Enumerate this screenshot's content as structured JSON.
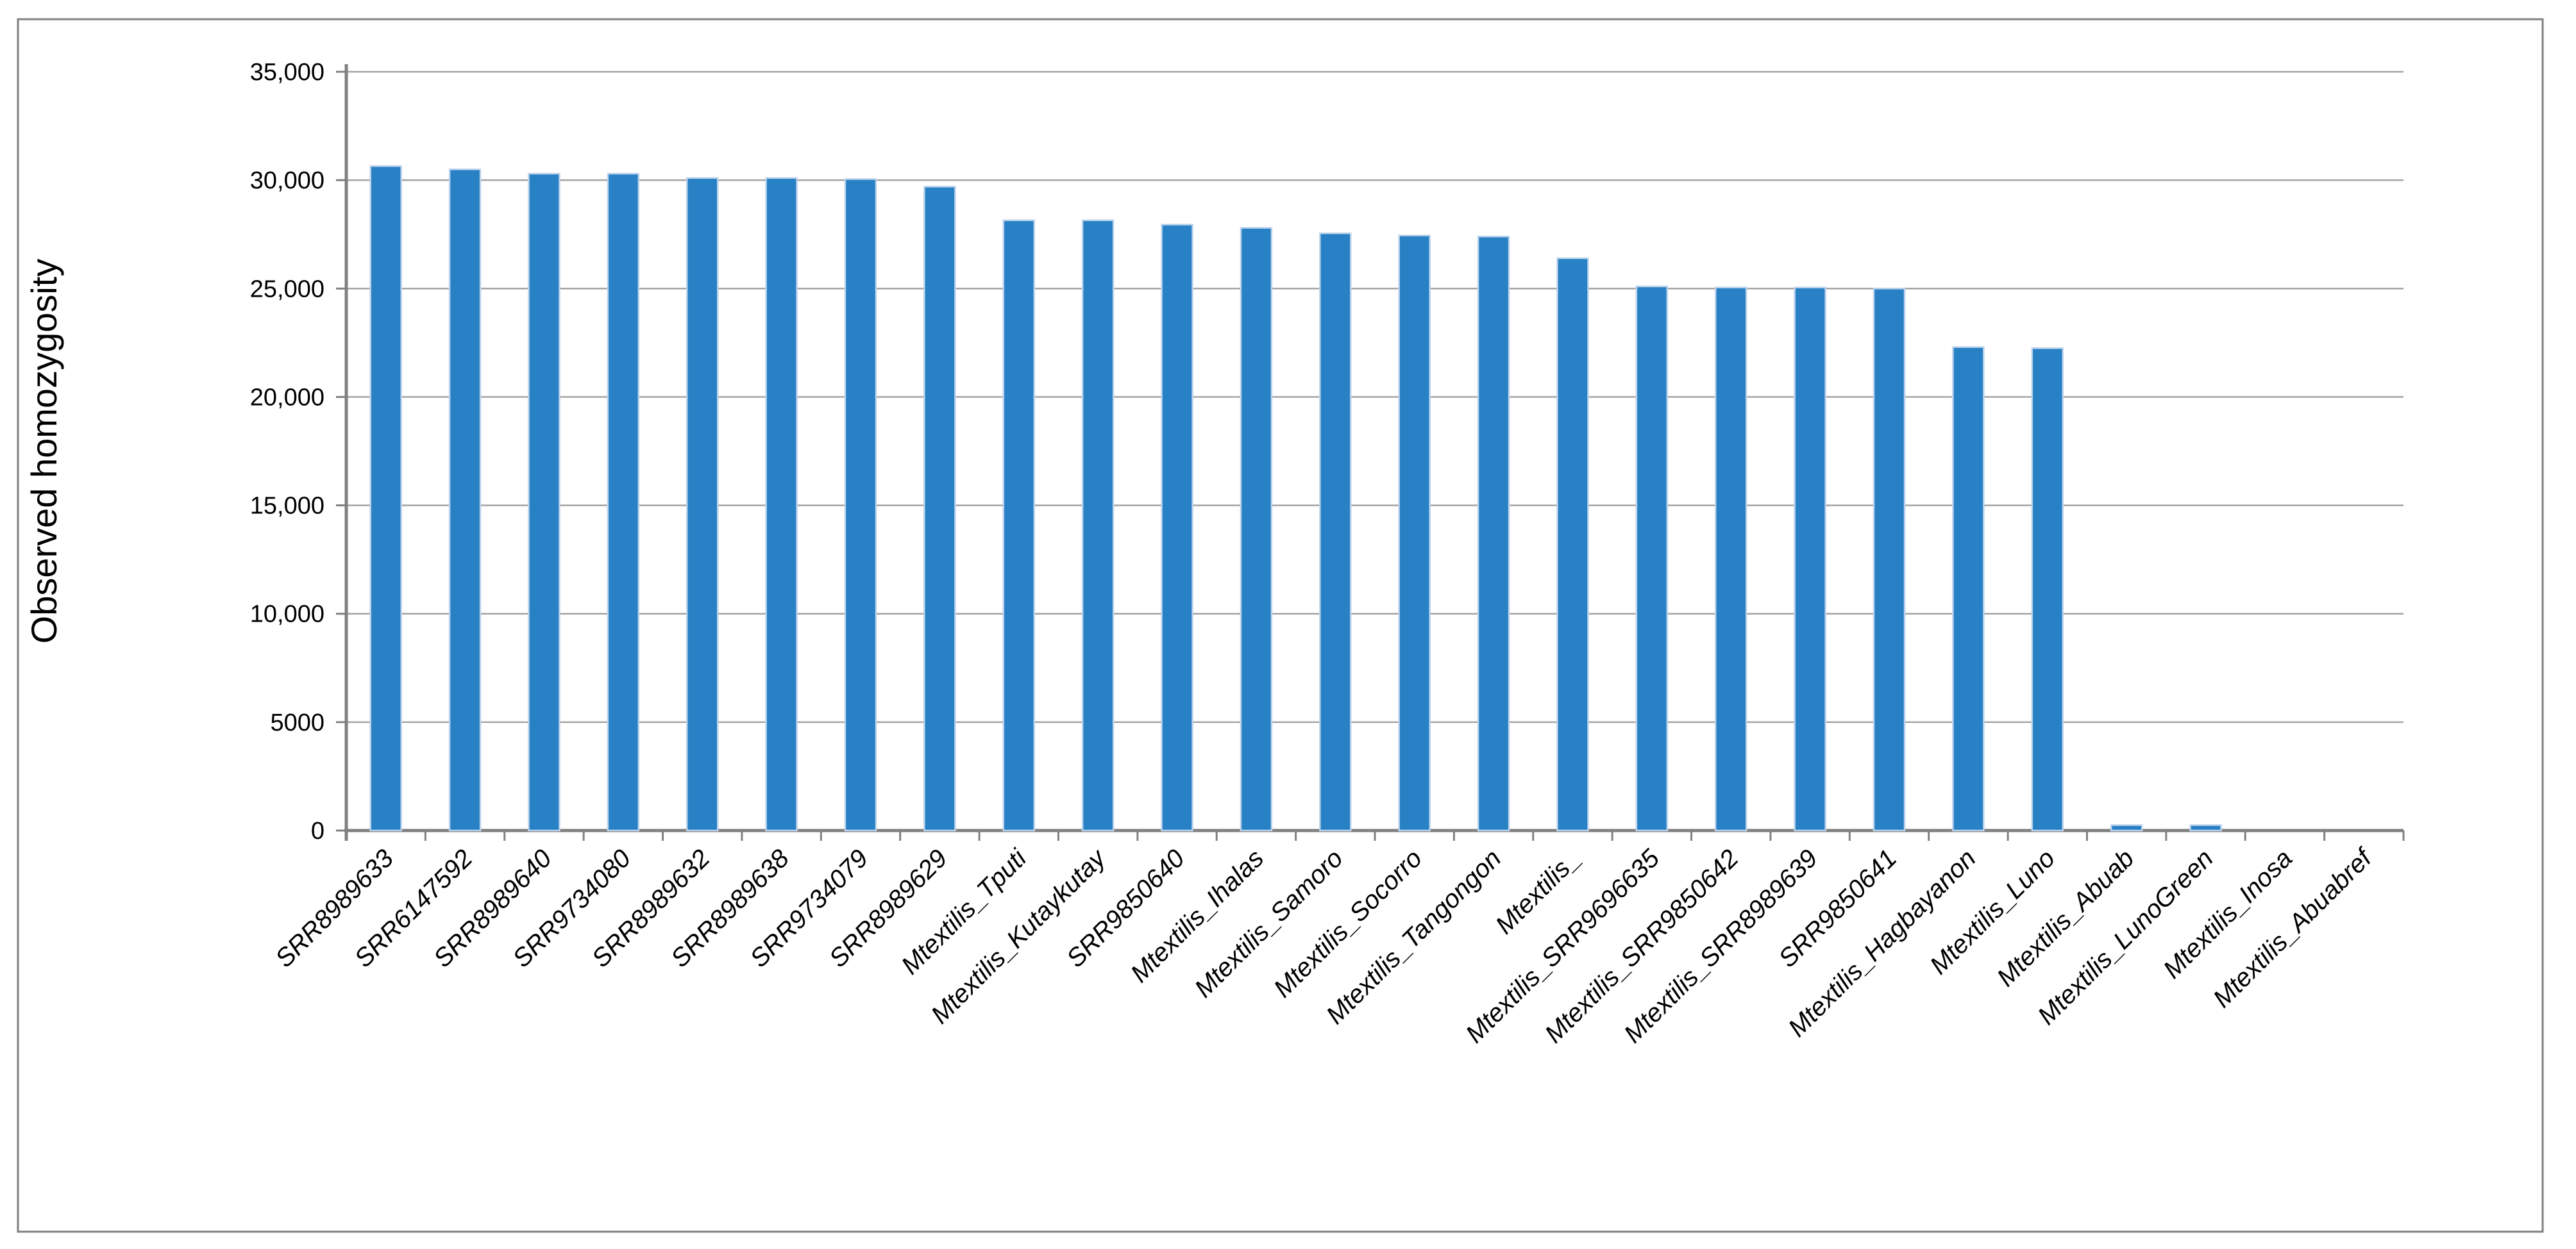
{
  "chart_data": {
    "type": "bar",
    "title": "",
    "xlabel": "",
    "ylabel": "Observed homozygosity",
    "ylim": [
      0,
      35000
    ],
    "grid": true,
    "gridline_step": 5000,
    "legend": "none",
    "y_tick_labels": [
      "0",
      "5000",
      "10,000",
      "15,000",
      "20,000",
      "25,000",
      "30,000",
      "35,000"
    ],
    "categories": [
      "SRR8989633",
      "SRR6147592",
      "SRR8989640",
      "SRR9734080",
      "SRR8989632",
      "SRR8989638",
      "SRR9734079",
      "SRR8989629",
      "Mtextilis_Tputi",
      "Mtextilis_Kutaykutay",
      "SRR9850640",
      "Mtextilis_Ihalas",
      "Mtextilis_Samoro",
      "Mtextilis_Socorro",
      "Mtextilis_Tangongon",
      "Mtextilis_",
      "Mtextilis_SRR9696635",
      "Mtextilis_SRR9850642",
      "Mtextilis_SRR8989639",
      "SRR9850641",
      "Mtextilis_Hagbayanon",
      "Mtextilis_Luno",
      "Mtextilis_Abuab",
      "Mtextilis_LunoGreen",
      "Mtextilis_Inosa",
      "Mtextilis_Abuabref"
    ],
    "values": [
      30650,
      30500,
      30300,
      30300,
      30100,
      30100,
      30050,
      29700,
      28150,
      28150,
      27950,
      27800,
      27550,
      27450,
      27400,
      26400,
      25100,
      25050,
      25050,
      25000,
      22300,
      22250,
      250,
      250,
      0,
      0
    ],
    "colors": {
      "bar": "#2781c4",
      "bar_edge": "#bdd3ec",
      "grid": "#a3a3a3",
      "axis": "#808080",
      "border": "#7f7f7f",
      "text": "#000000",
      "background": "#ffffff"
    }
  }
}
